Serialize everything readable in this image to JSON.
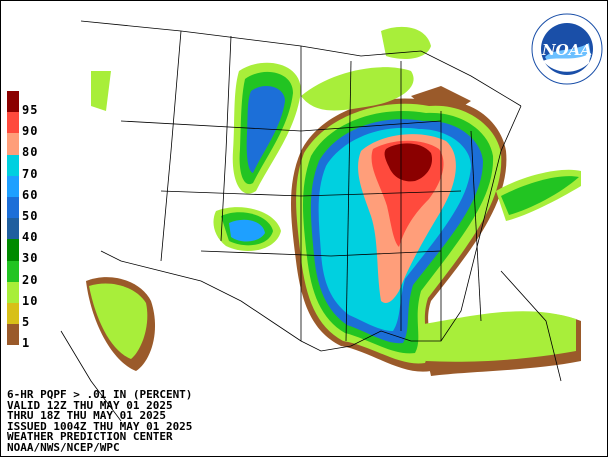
{
  "title_lines": [
    "6-HR PQPF > .01 IN (PERCENT)",
    "VALID 12Z THU MAY 01 2025",
    "THRU 18Z THU MAY 01 2025",
    "ISSUED 1004Z THU MAY 01 2025",
    "WEATHER PREDICTION CENTER",
    "NOAA/NWS/NCEP/WPC"
  ],
  "legend": [
    {
      "label": "95",
      "color": "#8b0000"
    },
    {
      "label": "90",
      "color": "#ff4a3d"
    },
    {
      "label": "80",
      "color": "#ff9e7a"
    },
    {
      "label": "70",
      "color": "#00d0e0"
    },
    {
      "label": "60",
      "color": "#1ea0ff"
    },
    {
      "label": "50",
      "color": "#1c6fd8"
    },
    {
      "label": "40",
      "color": "#1f5f9f"
    },
    {
      "label": "30",
      "color": "#008a00"
    },
    {
      "label": "20",
      "color": "#22c422"
    },
    {
      "label": "10",
      "color": "#a8ee3a"
    },
    {
      "label": "5",
      "color": "#d8c018"
    },
    {
      "label": "1",
      "color": "#9a5a2a"
    },
    {
      "label": "",
      "color": "#ffffff"
    }
  ],
  "logo": {
    "text": "NOAA",
    "ring_text": "NATIONAL OCEANIC AND ATMOSPHERIC ADMINISTRATION",
    "color": "#1a4fa8"
  }
}
